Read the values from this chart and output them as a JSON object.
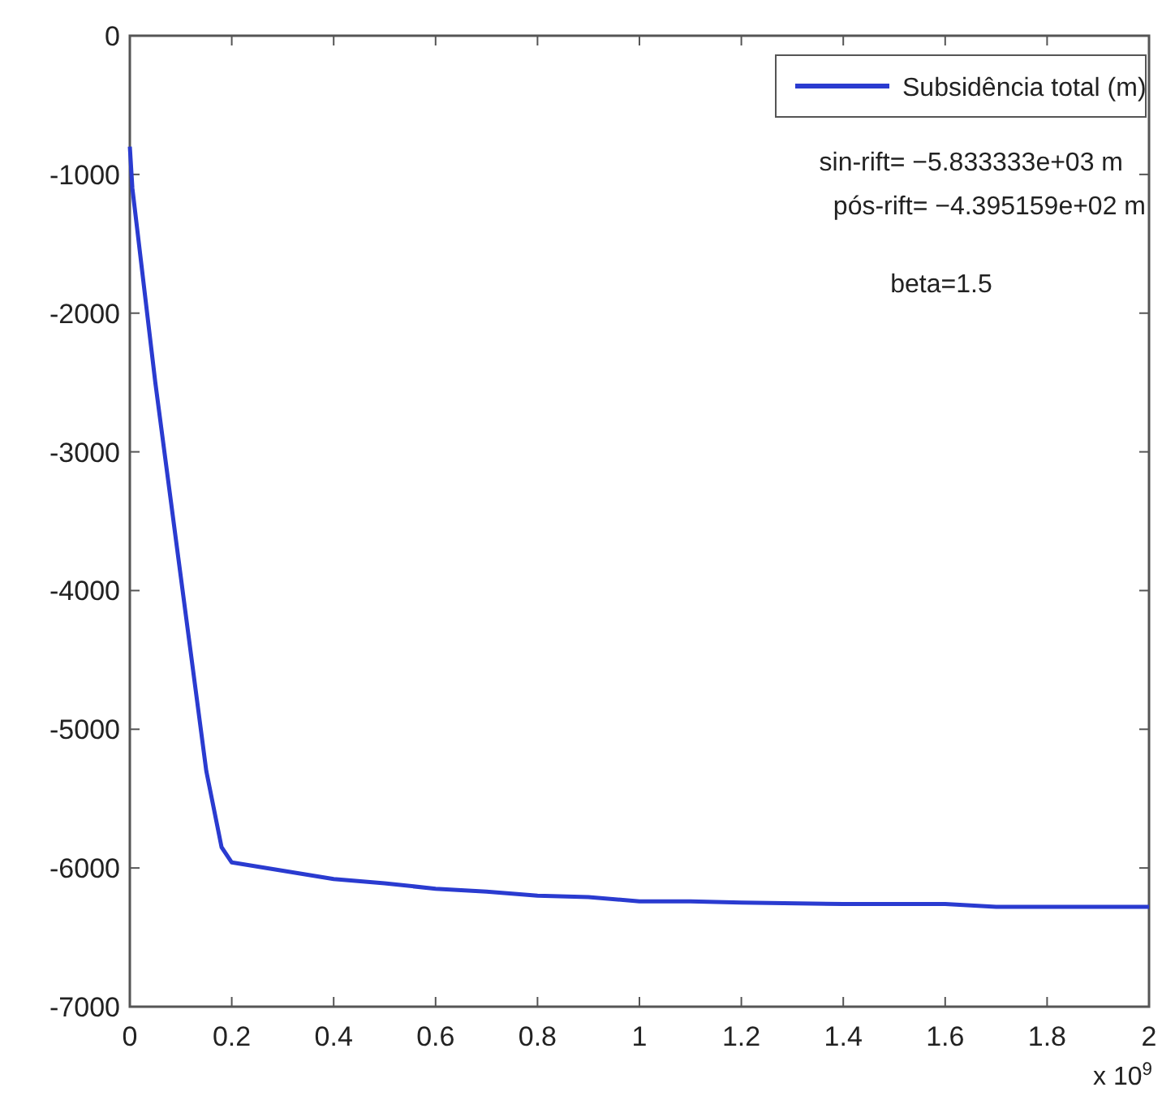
{
  "chart_data": {
    "type": "line",
    "legend": "top right",
    "grid": false,
    "xlim": [
      0,
      2
    ],
    "xticks": [
      0,
      0.2,
      0.4,
      0.6,
      0.8,
      1,
      1.2,
      1.4,
      1.6,
      1.8,
      2
    ],
    "ylim": [
      -7000,
      0
    ],
    "yticks": [
      -7000,
      -6000,
      -5000,
      -4000,
      -3000,
      -2000,
      -1000,
      0
    ],
    "series": [
      {
        "name": "Subsidência total (m)",
        "color": "#2a3bd0",
        "x": [
          0,
          0.005,
          0.05,
          0.1,
          0.15,
          0.18,
          0.2,
          0.3,
          0.4,
          0.5,
          0.6,
          0.7,
          0.8,
          0.9,
          1.0,
          1.1,
          1.2,
          1.4,
          1.6,
          1.65,
          1.7,
          1.8,
          2.0
        ],
        "values": [
          -800,
          -1100,
          -2500,
          -3900,
          -5300,
          -5850,
          -5960,
          -6020,
          -6080,
          -6110,
          -6150,
          -6170,
          -6200,
          -6210,
          -6240,
          -6240,
          -6250,
          -6260,
          -6260,
          -6270,
          -6280,
          -6280,
          -6280
        ]
      }
    ],
    "annotations": [
      "sin-rift= −5.833333e+03 m",
      "pós-rift= −4.395159e+02 m",
      "beta=1.5",
      "x 10$^{9}$"
    ]
  }
}
